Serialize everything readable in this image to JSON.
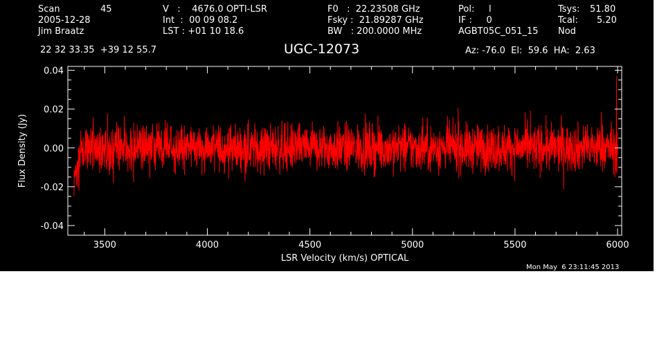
{
  "header": {
    "scan_label": "Scan",
    "scan_value": "45",
    "date": "2005-12-28",
    "observer": "Jim Braatz",
    "coords": "22 32 33.35  +39 12 55.7",
    "v_line": "V   :    4676.0 OPTI-LSR",
    "int_line": "Int  :  00 09 08.2",
    "lst_line": "LST : +01 10 18.6",
    "f0_line": "F0   :  22.23508 GHz",
    "fsky_line": "Fsky :  21.89287 GHz",
    "bw_line": "BW   : 200.0000 MHz",
    "pol_line": "Pol:     l",
    "if_line": "IF :     0",
    "proj_line": "AGBT05C_051_15",
    "tsys_label": "Tsys:",
    "tsys_value": "51.80",
    "tcal_label": "Tcal:",
    "tcal_value": "5.20",
    "nod_label": "Nod",
    "az_line": "Az: -76.0  El:  59.6  HA:  2.63"
  },
  "timestamp": "Mon May  6 23:11:45 2013",
  "chart_data": {
    "type": "line",
    "title": "UGC-12073",
    "xlabel": "LSR Velocity (km/s) OPTICAL",
    "ylabel": "Flux Density (Jy)",
    "xlim": [
      3320,
      6020
    ],
    "ylim": [
      -0.045,
      0.042
    ],
    "xticks": [
      3500,
      4000,
      4500,
      5000,
      5500,
      6000
    ],
    "xtick_labels": [
      "3500",
      "4000",
      "4500",
      "5000",
      "5500",
      "6000"
    ],
    "yticks": [
      -0.04,
      -0.02,
      0.0,
      0.02,
      0.04
    ],
    "ytick_labels": [
      "-0.04",
      "-0.02",
      "0.00",
      "0.02",
      "0.04"
    ],
    "grid": false,
    "series": [
      {
        "color": "#ff0000",
        "x_start": 3350,
        "x_end": 6000,
        "approx_mean": 0.0,
        "approx_noise_rms": 0.006,
        "note_points": [
          [
            3350,
            -0.025
          ],
          [
            5995,
            0.037
          ]
        ]
      }
    ]
  },
  "colors": {
    "background": "#000000",
    "axes": "#ffffff",
    "trace": "#ff0000",
    "page": "#ffffff"
  }
}
